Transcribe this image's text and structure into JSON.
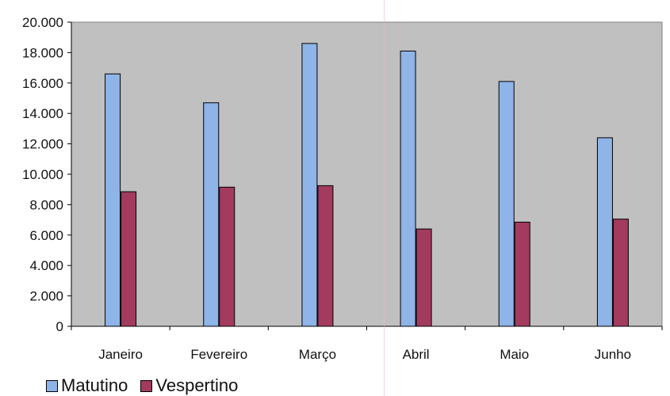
{
  "chart_data": {
    "type": "bar",
    "categories": [
      "Janeiro",
      "Fevereiro",
      "Março",
      "Abril",
      "Maio",
      "Junho"
    ],
    "series": [
      {
        "name": "Matutino",
        "values": [
          16600,
          14700,
          18600,
          18100,
          16100,
          12400
        ],
        "color": "#8eb4e8"
      },
      {
        "name": "Vespertino",
        "values": [
          8850,
          9150,
          9250,
          6400,
          6850,
          7050
        ],
        "color": "#a23b5e"
      }
    ],
    "yticks": [
      "0",
      "2.000",
      "4.000",
      "6.000",
      "8.000",
      "10.000",
      "12.000",
      "14.000",
      "16.000",
      "18.000",
      "20.000"
    ],
    "ylim": [
      0,
      20000
    ],
    "grid": false,
    "legend_position": "bottom-left",
    "plot_background": "#c0c0c0",
    "title": "",
    "xlabel": "",
    "ylabel": ""
  }
}
